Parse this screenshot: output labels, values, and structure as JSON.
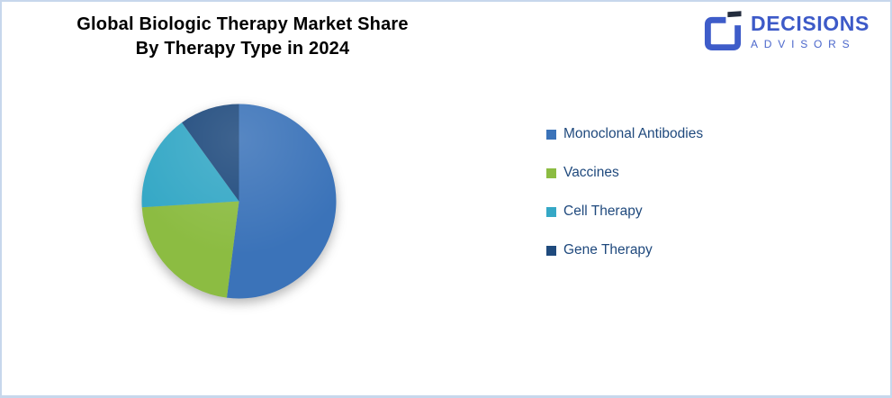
{
  "slide": {
    "background": "#FFFFFF",
    "border_color": "#C7D7EC"
  },
  "header": {
    "title_line1": "Global Biologic Therapy Market Share",
    "title_line2": "By Therapy Type in 2024"
  },
  "logo": {
    "name": "DECISIONS",
    "subname": "ADVISORS",
    "brand_color": "#3D5AC8",
    "icon_dark_color": "#232C3D",
    "icon": "decisions-advisors-g-mark"
  },
  "chart_data": {
    "type": "pie",
    "title": "Global Biologic Therapy Market Share By Therapy Type in 2024",
    "categories": [
      "Monoclonal Antibodies",
      "Vaccines",
      "Cell Therapy",
      "Gene Therapy"
    ],
    "values": [
      52,
      22,
      16,
      10
    ],
    "unit": "percent-share",
    "colors": [
      "#3B73B9",
      "#8CBC42",
      "#35A8C6",
      "#1F4A7D"
    ],
    "start_angle_deg": 0,
    "direction": "clockwise",
    "data_labels": "none",
    "legend_position": "right",
    "legend_text_color": "#1F497D",
    "shadow": true
  }
}
